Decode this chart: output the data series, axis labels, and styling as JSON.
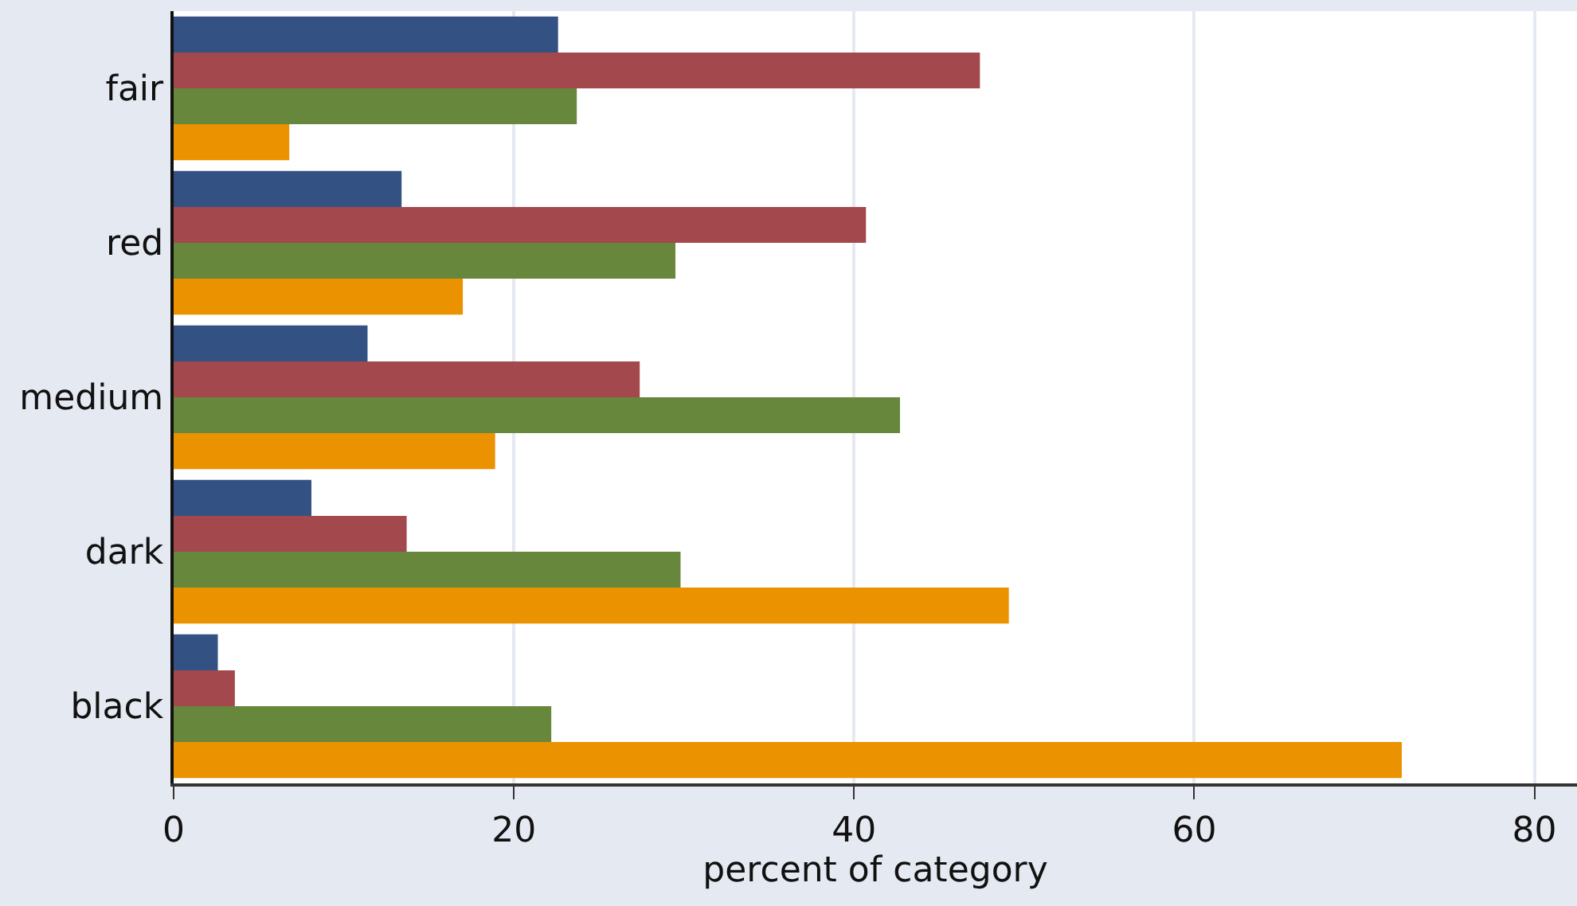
{
  "chart_data": {
    "type": "bar",
    "orientation": "horizontal",
    "xlabel": "percent of category",
    "categories": [
      "fair",
      "red",
      "medium",
      "dark",
      "black"
    ],
    "series": [
      {
        "color": "#335283",
        "values": [
          22.6,
          13.4,
          11.4,
          8.1,
          2.6
        ]
      },
      {
        "color": "#a3484d",
        "values": [
          47.4,
          40.7,
          27.4,
          13.7,
          3.6
        ]
      },
      {
        "color": "#67873d",
        "values": [
          23.7,
          29.5,
          42.7,
          29.8,
          22.2
        ]
      },
      {
        "color": "#ea9200",
        "values": [
          6.8,
          17.0,
          18.9,
          49.1,
          72.2
        ]
      }
    ],
    "xlim": [
      0,
      82.5
    ],
    "xticks": [
      0,
      20,
      40,
      60,
      80
    ],
    "grid": "x"
  }
}
